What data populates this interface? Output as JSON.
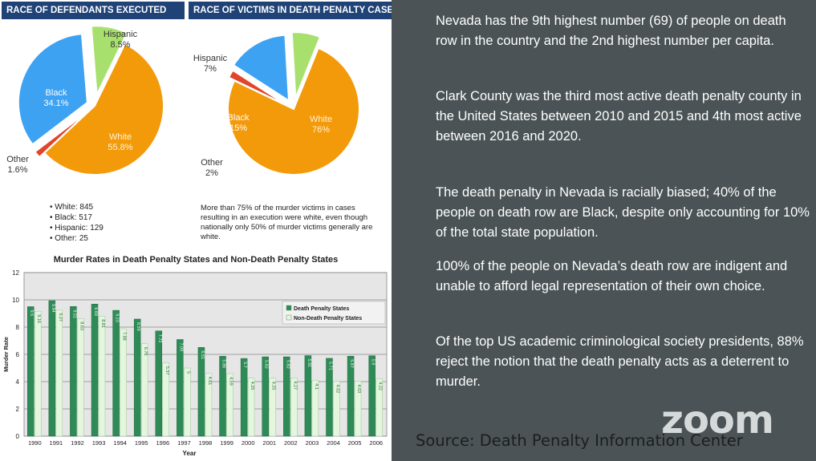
{
  "left": {
    "header_defendants": "RACE OF DEFENDANTS EXECUTED",
    "header_victims": "RACE OF VICTIMS IN DEATH PENALTY CASES",
    "defendant_counts": [
      "White: 845",
      "Black: 517",
      "Hispanic: 129",
      "Other: 25"
    ],
    "victim_note": "More than 75% of the murder victims in cases resulting in an execution were white, even though nationally only 50% of murder victims generally are white."
  },
  "right": {
    "paragraphs": [
      "Nevada has the 9th highest number (69) of people on death row in the country and the 2nd highest number per capita.",
      "Clark County was the third most active death penalty county in the United States between 2010 and 2015 and 4th most active between 2016 and 2020.",
      "The death penalty in Nevada is racially biased; 40% of the people on death row are Black, despite only accounting for 10% of the total state population.",
      "100% of the people on Nevada’s death row are indigent and unable to afford legal representation of their own choice.",
      "Of the top US academic criminological society presidents, 88% reject the notion that the death penalty acts as a deterrent to murder."
    ],
    "zoom_logo": "zoom",
    "source": "Source: Death Penalty Information Center"
  },
  "colors": {
    "header_bg": "#1f4377",
    "white_slice": "#f39a0a",
    "black_slice": "#3ea2f2",
    "hispanic_slice": "#a8e06e",
    "other_slice": "#e2452a",
    "dp_bar": "#2e8b57",
    "non_dp_bar": "#e4f6de",
    "right_bg": "#4b5356"
  },
  "chart_data": [
    {
      "type": "pie",
      "title": "RACE OF DEFENDANTS EXECUTED",
      "slices": [
        {
          "label": "White",
          "value": 55.8,
          "display": "55.8%"
        },
        {
          "label": "Other",
          "value": 1.6,
          "display": "1.6%"
        },
        {
          "label": "Black",
          "value": 34.1,
          "display": "34.1%"
        },
        {
          "label": "Hispanic",
          "value": 8.5,
          "display": "8.5%"
        }
      ]
    },
    {
      "type": "pie",
      "title": "RACE OF VICTIMS IN DEATH PENALTY CASES",
      "slices": [
        {
          "label": "White",
          "value": 76,
          "display": "76%"
        },
        {
          "label": "Other",
          "value": 2,
          "display": "2%"
        },
        {
          "label": "Black",
          "value": 15,
          "display": "15%"
        },
        {
          "label": "Hispanic",
          "value": 7,
          "display": "7%"
        }
      ]
    },
    {
      "type": "bar",
      "title": "Murder Rates in Death Penalty States and Non-Death Penalty States",
      "xlabel": "Year",
      "ylabel": "Murder Rate",
      "ylim": [
        0,
        12
      ],
      "yticks": [
        0,
        2,
        4,
        6,
        8,
        10,
        12
      ],
      "grid": true,
      "legend_position": "top-right",
      "categories": [
        "1990",
        "1991",
        "1992",
        "1993",
        "1994",
        "1995",
        "1996",
        "1997",
        "1998",
        "1999",
        "2000",
        "2001",
        "2002",
        "2003",
        "2004",
        "2005",
        "2006"
      ],
      "series": [
        {
          "name": "Death Penalty States",
          "values": [
            9.5,
            9.94,
            9.51,
            9.69,
            9.23,
            8.59,
            7.72,
            7.09,
            6.51,
            5.86,
            5.7,
            5.82,
            5.82,
            5.91,
            5.71,
            5.87,
            5.9
          ]
        },
        {
          "name": "Non-Death Penalty States",
          "values": [
            9.16,
            9.27,
            8.63,
            8.81,
            7.88,
            6.78,
            5.37,
            5.0,
            4.61,
            4.59,
            4.25,
            4.25,
            4.27,
            4.1,
            4.02,
            4.03,
            4.22
          ]
        }
      ]
    }
  ]
}
